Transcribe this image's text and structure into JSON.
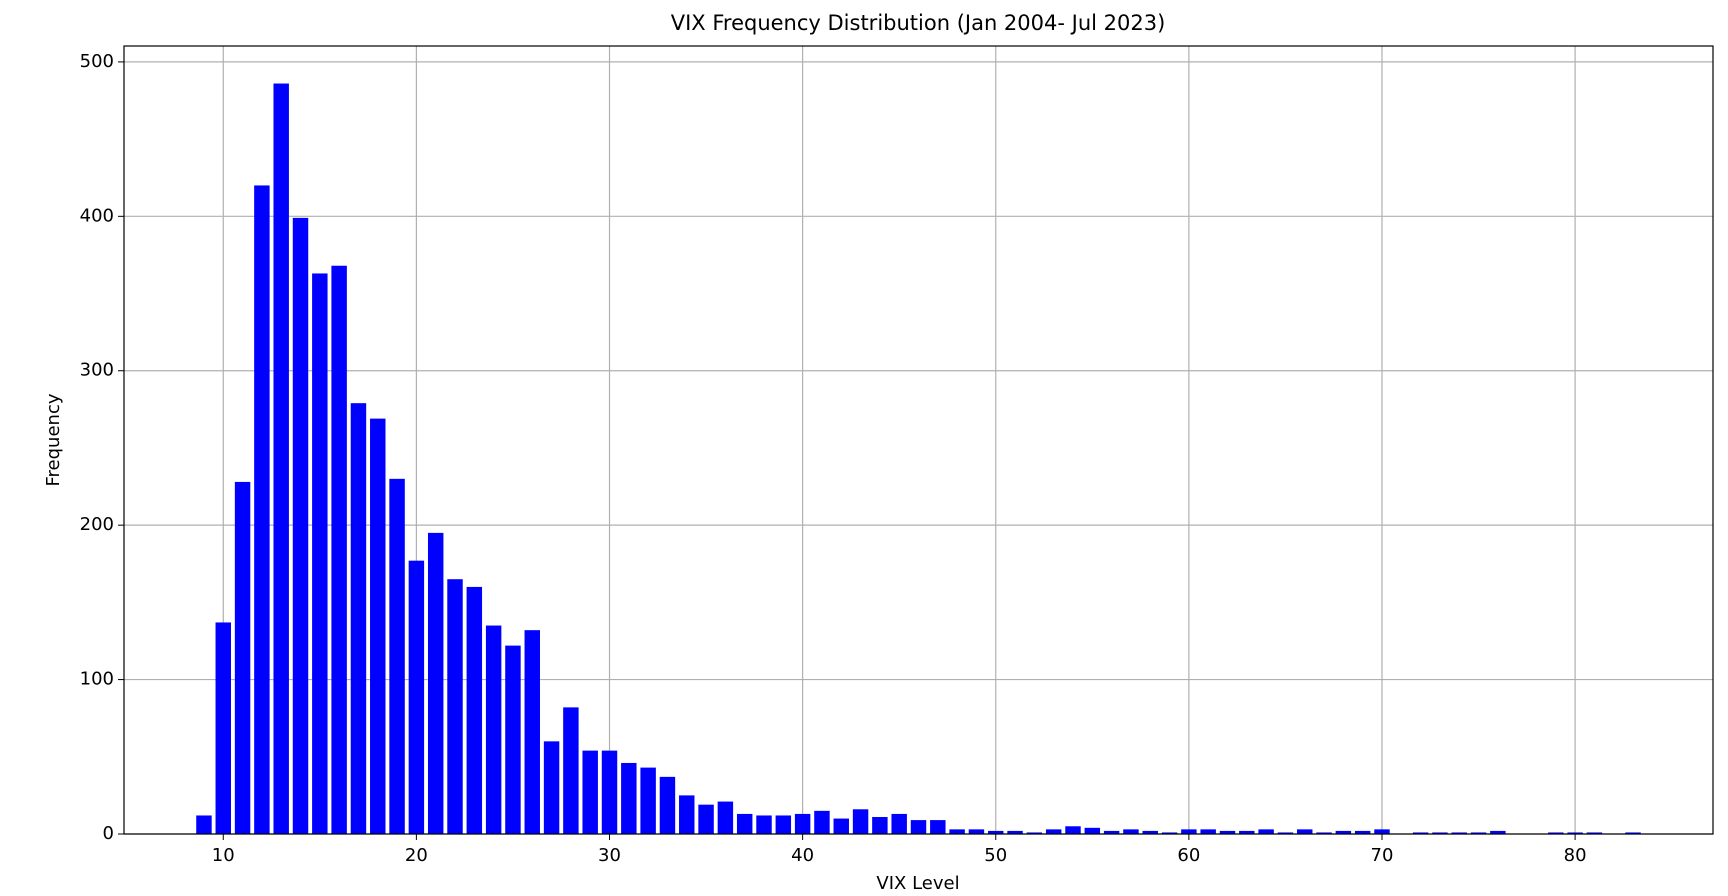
{
  "chart_data": {
    "type": "bar",
    "title": "VIX Frequency Distribution (Jan 2004- Jul 2023)",
    "x_label": "VIX Level",
    "y_label": "Frequency",
    "color": "#0000ff",
    "grid": true,
    "x": [
      9,
      10,
      11,
      12,
      13,
      14,
      15,
      16,
      17,
      18,
      19,
      20,
      21,
      22,
      23,
      24,
      25,
      26,
      27,
      28,
      29,
      30,
      31,
      32,
      33,
      34,
      35,
      36,
      37,
      38,
      39,
      40,
      41,
      42,
      43,
      44,
      45,
      46,
      47,
      48,
      49,
      50,
      51,
      52,
      53,
      54,
      55,
      56,
      57,
      58,
      59,
      60,
      61,
      62,
      63,
      64,
      65,
      66,
      67,
      68,
      69,
      70,
      71,
      72,
      73,
      74,
      75,
      76,
      77,
      78,
      79,
      80,
      81,
      82,
      83
    ],
    "values": [
      12,
      137,
      228,
      420,
      486,
      399,
      363,
      368,
      279,
      269,
      230,
      177,
      195,
      165,
      160,
      135,
      122,
      132,
      60,
      82,
      54,
      54,
      46,
      43,
      37,
      25,
      19,
      21,
      13,
      12,
      12,
      13,
      15,
      10,
      16,
      11,
      13,
      9,
      9,
      3,
      3,
      2,
      2,
      1,
      3,
      5,
      4,
      2,
      3,
      2,
      1,
      3,
      3,
      2,
      2,
      3,
      1,
      3,
      1,
      2,
      2,
      3,
      0,
      1,
      1,
      1,
      1,
      2,
      0,
      0,
      1,
      1,
      1,
      0,
      1
    ],
    "xlim": [
      4.86,
      87.14
    ],
    "xticks": [
      10,
      20,
      30,
      40,
      50,
      60,
      70,
      80
    ],
    "ylim": [
      0,
      510.3
    ],
    "yticks": [
      0,
      100,
      200,
      300,
      400,
      500
    ]
  }
}
